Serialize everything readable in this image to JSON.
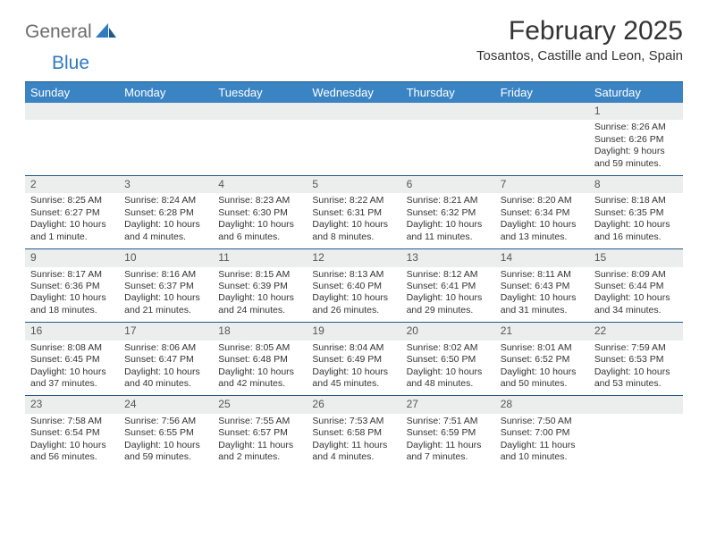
{
  "brand": {
    "part1": "General",
    "part2": "Blue"
  },
  "title": "February 2025",
  "location": "Tosantos, Castille and Leon, Spain",
  "colors": {
    "header_bg": "#3b84c4",
    "header_border": "#1f5a8a",
    "daynum_bg": "#eceeee",
    "brand_blue": "#2f7bbf",
    "brand_gray": "#6b6b6b",
    "text": "#333333",
    "bg": "#ffffff"
  },
  "font": {
    "family": "Arial",
    "title_size": 30,
    "location_size": 15,
    "header_size": 13,
    "body_size": 10.5
  },
  "weekdays": [
    "Sunday",
    "Monday",
    "Tuesday",
    "Wednesday",
    "Thursday",
    "Friday",
    "Saturday"
  ],
  "weeks": [
    [
      null,
      null,
      null,
      null,
      null,
      null,
      {
        "n": "1",
        "sr": "Sunrise: 8:26 AM",
        "ss": "Sunset: 6:26 PM",
        "dl": "Daylight: 9 hours and 59 minutes."
      }
    ],
    [
      {
        "n": "2",
        "sr": "Sunrise: 8:25 AM",
        "ss": "Sunset: 6:27 PM",
        "dl": "Daylight: 10 hours and 1 minute."
      },
      {
        "n": "3",
        "sr": "Sunrise: 8:24 AM",
        "ss": "Sunset: 6:28 PM",
        "dl": "Daylight: 10 hours and 4 minutes."
      },
      {
        "n": "4",
        "sr": "Sunrise: 8:23 AM",
        "ss": "Sunset: 6:30 PM",
        "dl": "Daylight: 10 hours and 6 minutes."
      },
      {
        "n": "5",
        "sr": "Sunrise: 8:22 AM",
        "ss": "Sunset: 6:31 PM",
        "dl": "Daylight: 10 hours and 8 minutes."
      },
      {
        "n": "6",
        "sr": "Sunrise: 8:21 AM",
        "ss": "Sunset: 6:32 PM",
        "dl": "Daylight: 10 hours and 11 minutes."
      },
      {
        "n": "7",
        "sr": "Sunrise: 8:20 AM",
        "ss": "Sunset: 6:34 PM",
        "dl": "Daylight: 10 hours and 13 minutes."
      },
      {
        "n": "8",
        "sr": "Sunrise: 8:18 AM",
        "ss": "Sunset: 6:35 PM",
        "dl": "Daylight: 10 hours and 16 minutes."
      }
    ],
    [
      {
        "n": "9",
        "sr": "Sunrise: 8:17 AM",
        "ss": "Sunset: 6:36 PM",
        "dl": "Daylight: 10 hours and 18 minutes."
      },
      {
        "n": "10",
        "sr": "Sunrise: 8:16 AM",
        "ss": "Sunset: 6:37 PM",
        "dl": "Daylight: 10 hours and 21 minutes."
      },
      {
        "n": "11",
        "sr": "Sunrise: 8:15 AM",
        "ss": "Sunset: 6:39 PM",
        "dl": "Daylight: 10 hours and 24 minutes."
      },
      {
        "n": "12",
        "sr": "Sunrise: 8:13 AM",
        "ss": "Sunset: 6:40 PM",
        "dl": "Daylight: 10 hours and 26 minutes."
      },
      {
        "n": "13",
        "sr": "Sunrise: 8:12 AM",
        "ss": "Sunset: 6:41 PM",
        "dl": "Daylight: 10 hours and 29 minutes."
      },
      {
        "n": "14",
        "sr": "Sunrise: 8:11 AM",
        "ss": "Sunset: 6:43 PM",
        "dl": "Daylight: 10 hours and 31 minutes."
      },
      {
        "n": "15",
        "sr": "Sunrise: 8:09 AM",
        "ss": "Sunset: 6:44 PM",
        "dl": "Daylight: 10 hours and 34 minutes."
      }
    ],
    [
      {
        "n": "16",
        "sr": "Sunrise: 8:08 AM",
        "ss": "Sunset: 6:45 PM",
        "dl": "Daylight: 10 hours and 37 minutes."
      },
      {
        "n": "17",
        "sr": "Sunrise: 8:06 AM",
        "ss": "Sunset: 6:47 PM",
        "dl": "Daylight: 10 hours and 40 minutes."
      },
      {
        "n": "18",
        "sr": "Sunrise: 8:05 AM",
        "ss": "Sunset: 6:48 PM",
        "dl": "Daylight: 10 hours and 42 minutes."
      },
      {
        "n": "19",
        "sr": "Sunrise: 8:04 AM",
        "ss": "Sunset: 6:49 PM",
        "dl": "Daylight: 10 hours and 45 minutes."
      },
      {
        "n": "20",
        "sr": "Sunrise: 8:02 AM",
        "ss": "Sunset: 6:50 PM",
        "dl": "Daylight: 10 hours and 48 minutes."
      },
      {
        "n": "21",
        "sr": "Sunrise: 8:01 AM",
        "ss": "Sunset: 6:52 PM",
        "dl": "Daylight: 10 hours and 50 minutes."
      },
      {
        "n": "22",
        "sr": "Sunrise: 7:59 AM",
        "ss": "Sunset: 6:53 PM",
        "dl": "Daylight: 10 hours and 53 minutes."
      }
    ],
    [
      {
        "n": "23",
        "sr": "Sunrise: 7:58 AM",
        "ss": "Sunset: 6:54 PM",
        "dl": "Daylight: 10 hours and 56 minutes."
      },
      {
        "n": "24",
        "sr": "Sunrise: 7:56 AM",
        "ss": "Sunset: 6:55 PM",
        "dl": "Daylight: 10 hours and 59 minutes."
      },
      {
        "n": "25",
        "sr": "Sunrise: 7:55 AM",
        "ss": "Sunset: 6:57 PM",
        "dl": "Daylight: 11 hours and 2 minutes."
      },
      {
        "n": "26",
        "sr": "Sunrise: 7:53 AM",
        "ss": "Sunset: 6:58 PM",
        "dl": "Daylight: 11 hours and 4 minutes."
      },
      {
        "n": "27",
        "sr": "Sunrise: 7:51 AM",
        "ss": "Sunset: 6:59 PM",
        "dl": "Daylight: 11 hours and 7 minutes."
      },
      {
        "n": "28",
        "sr": "Sunrise: 7:50 AM",
        "ss": "Sunset: 7:00 PM",
        "dl": "Daylight: 11 hours and 10 minutes."
      },
      null
    ]
  ]
}
